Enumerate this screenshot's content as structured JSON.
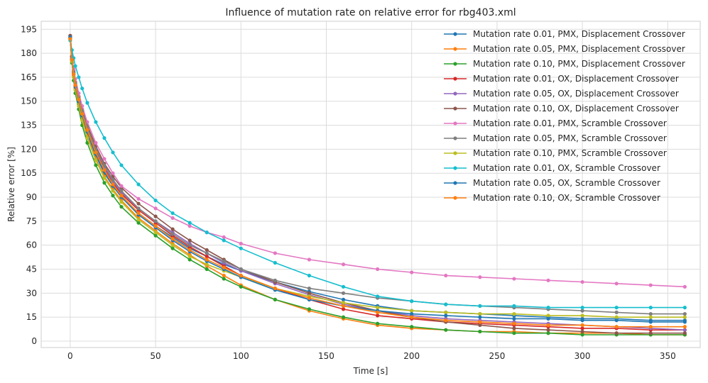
{
  "chart_data": {
    "type": "line",
    "title": "Influence of mutation rate on relative error for rbg403.xml",
    "xlabel": "Time [s]",
    "ylabel": "Relative error [%]",
    "xlim": [
      -17,
      369
    ],
    "ylim": [
      -4,
      200
    ],
    "xticks": [
      0,
      50,
      100,
      150,
      200,
      250,
      300,
      350
    ],
    "yticks": [
      0,
      15,
      30,
      45,
      60,
      75,
      90,
      105,
      120,
      135,
      150,
      165,
      180,
      195
    ],
    "grid": true,
    "legend_position": "top-right",
    "x": [
      0,
      1,
      2,
      3,
      5,
      7,
      10,
      15,
      20,
      25,
      30,
      40,
      50,
      60,
      70,
      80,
      90,
      100,
      120,
      140,
      160,
      180,
      200,
      220,
      240,
      260,
      280,
      300,
      320,
      340,
      360
    ],
    "series": [
      {
        "name": "Mutation rate 0.01, PMX, Displacement Crossover",
        "color": "#1f77b4",
        "values": [
          191,
          178,
          168,
          160,
          150,
          141,
          130,
          116,
          105,
          97,
          90,
          80,
          72,
          65,
          58,
          53,
          48,
          44,
          37,
          31,
          26,
          22,
          19,
          18,
          17,
          16,
          15,
          14,
          14,
          13,
          13
        ]
      },
      {
        "name": "Mutation rate 0.05, PMX, Displacement Crossover",
        "color": "#ff7f0e",
        "values": [
          190,
          176,
          166,
          158,
          148,
          139,
          128,
          114,
          103,
          95,
          88,
          77,
          69,
          61,
          54,
          47,
          41,
          35,
          26,
          19,
          14,
          10,
          8,
          7,
          6,
          6,
          5,
          5,
          5,
          4,
          4
        ]
      },
      {
        "name": "Mutation rate 0.10, PMX, Displacement Crossover",
        "color": "#2ca02c",
        "values": [
          189,
          174,
          163,
          155,
          145,
          135,
          124,
          110,
          99,
          91,
          84,
          74,
          66,
          58,
          51,
          45,
          39,
          34,
          26,
          20,
          15,
          11,
          9,
          7,
          6,
          5,
          5,
          4,
          4,
          4,
          4
        ]
      },
      {
        "name": "Mutation rate 0.01, OX, Displacement Crossover",
        "color": "#d62728",
        "values": [
          190,
          176,
          167,
          160,
          151,
          143,
          133,
          119,
          108,
          99,
          92,
          82,
          74,
          66,
          59,
          53,
          47,
          41,
          33,
          26,
          20,
          16,
          14,
          12,
          11,
          10,
          9,
          8,
          8,
          7,
          7
        ]
      },
      {
        "name": "Mutation rate 0.05, OX, Displacement Crossover",
        "color": "#9467bd",
        "values": [
          190,
          177,
          168,
          161,
          152,
          144,
          134,
          120,
          109,
          100,
          93,
          83,
          75,
          68,
          61,
          55,
          49,
          44,
          36,
          29,
          23,
          19,
          16,
          14,
          13,
          12,
          11,
          10,
          9,
          8,
          7
        ]
      },
      {
        "name": "Mutation rate 0.10, OX, Displacement Crossover",
        "color": "#8c564b",
        "values": [
          191,
          178,
          169,
          162,
          153,
          145,
          135,
          122,
          111,
          103,
          96,
          86,
          78,
          70,
          63,
          57,
          51,
          45,
          37,
          30,
          24,
          19,
          15,
          12,
          10,
          8,
          7,
          6,
          5,
          5,
          5
        ]
      },
      {
        "name": "Mutation rate 0.01, PMX, Scramble Crossover",
        "color": "#e377c2",
        "values": [
          190,
          177,
          170,
          164,
          155,
          147,
          137,
          124,
          114,
          105,
          97,
          89,
          83,
          77,
          72,
          68,
          65,
          61,
          55,
          51,
          48,
          45,
          43,
          41,
          40,
          39,
          38,
          37,
          36,
          35,
          34
        ]
      },
      {
        "name": "Mutation rate 0.05, PMX, Scramble Crossover",
        "color": "#7f7f7f",
        "values": [
          190,
          177,
          168,
          161,
          152,
          144,
          134,
          120,
          110,
          101,
          94,
          83,
          75,
          67,
          60,
          55,
          50,
          45,
          38,
          33,
          30,
          27,
          25,
          23,
          22,
          21,
          20,
          19,
          18,
          17,
          17
        ]
      },
      {
        "name": "Mutation rate 0.10, PMX, Scramble Crossover",
        "color": "#bcbd22",
        "values": [
          189,
          175,
          165,
          157,
          147,
          138,
          127,
          113,
          102,
          94,
          87,
          76,
          68,
          60,
          53,
          48,
          44,
          40,
          33,
          28,
          24,
          21,
          19,
          18,
          17,
          17,
          16,
          16,
          15,
          15,
          15
        ]
      },
      {
        "name": "Mutation rate 0.01, OX, Scramble Crossover",
        "color": "#17becf",
        "values": [
          188,
          182,
          177,
          172,
          165,
          158,
          149,
          137,
          127,
          118,
          110,
          98,
          88,
          80,
          74,
          68,
          63,
          58,
          49,
          41,
          34,
          28,
          25,
          23,
          22,
          22,
          21,
          21,
          21,
          21,
          21
        ]
      },
      {
        "name": "Mutation rate 0.05, OX, Scramble Crossover",
        "color": "#1f77b4",
        "values": [
          190,
          176,
          167,
          159,
          150,
          141,
          131,
          117,
          106,
          97,
          90,
          79,
          71,
          63,
          56,
          50,
          45,
          40,
          32,
          26,
          22,
          19,
          17,
          16,
          15,
          14,
          14,
          13,
          13,
          12,
          12
        ]
      },
      {
        "name": "Mutation rate 0.10, OX, Scramble Crossover",
        "color": "#ff7f0e",
        "values": [
          189,
          176,
          167,
          160,
          151,
          142,
          132,
          118,
          107,
          98,
          91,
          80,
          72,
          64,
          57,
          51,
          46,
          41,
          33,
          27,
          22,
          18,
          15,
          13,
          12,
          11,
          10,
          10,
          9,
          9,
          9
        ]
      }
    ]
  }
}
